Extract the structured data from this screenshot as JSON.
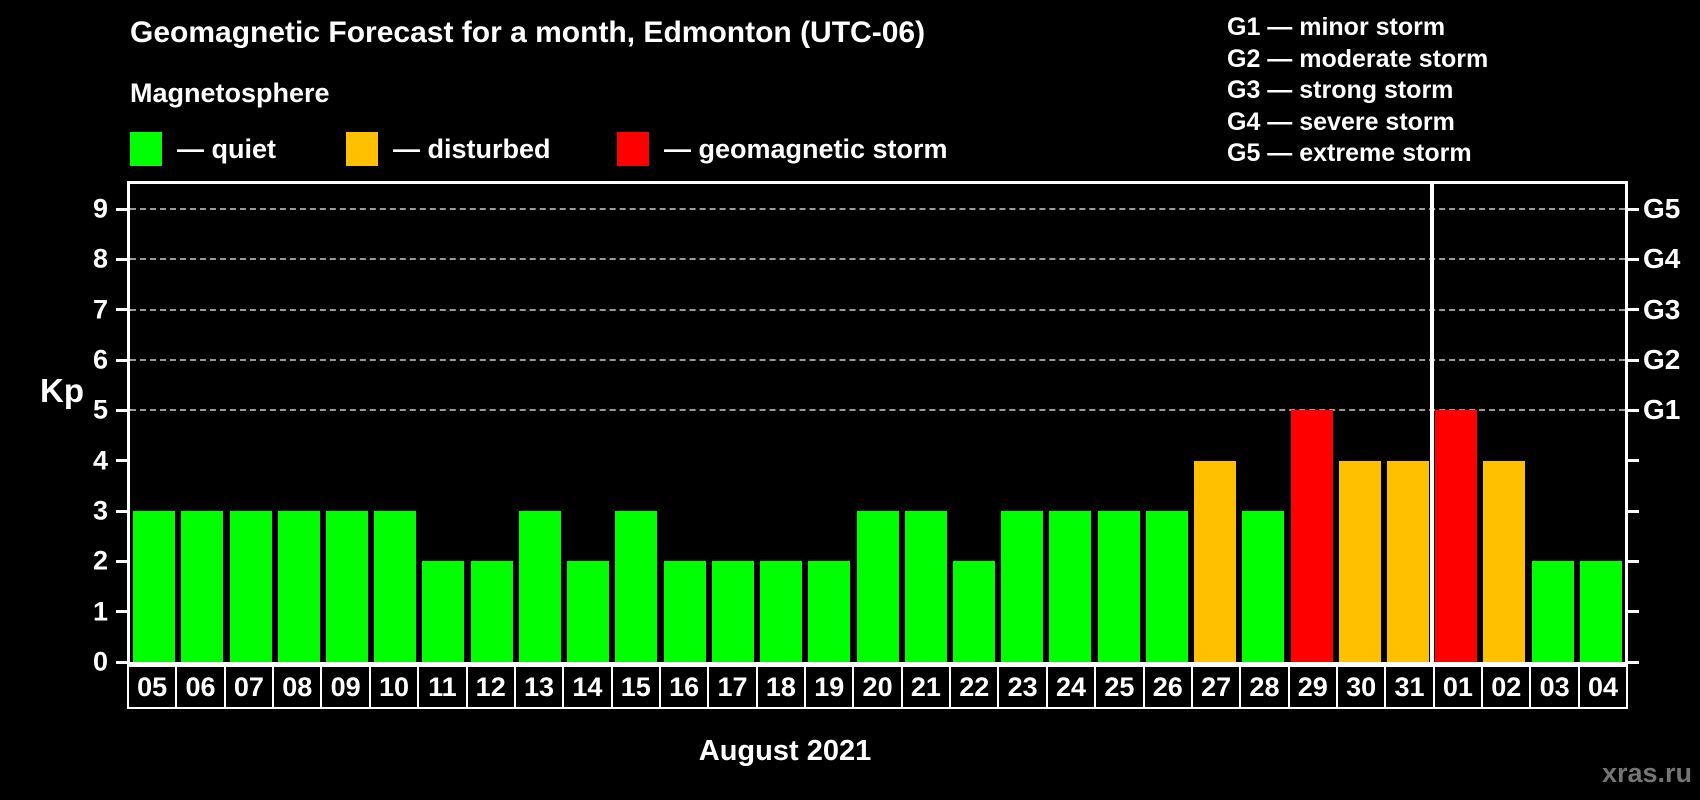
{
  "header": {
    "title": "Geomagnetic Forecast for a month, Edmonton (UTC-06)",
    "subtitle": "Magnetosphere"
  },
  "legend": {
    "items": [
      {
        "key": "quiet",
        "label": "— quiet",
        "color": "#00ff00"
      },
      {
        "key": "disturbed",
        "label": "— disturbed",
        "color": "#ffc000"
      },
      {
        "key": "storm",
        "label": "— geomagnetic storm",
        "color": "#ff0000"
      }
    ]
  },
  "storm_scale": {
    "lines": [
      "G1 — minor storm",
      "G2 — moderate storm",
      "G3 — strong storm",
      "G4 — severe storm",
      "G5 — extreme storm"
    ]
  },
  "watermark": "xras.ru",
  "chart_data": {
    "type": "bar",
    "title": "Geomagnetic Forecast for a month, Edmonton (UTC-06)",
    "xlabel": "August 2021",
    "ylabel": "Kp",
    "ylim": [
      0,
      9.5
    ],
    "grid": "horizontal dashed lines at Kp 5-9 (G1-G5)",
    "legend_position": "top",
    "categories": [
      "05",
      "06",
      "07",
      "08",
      "09",
      "10",
      "11",
      "12",
      "13",
      "14",
      "15",
      "16",
      "17",
      "18",
      "19",
      "20",
      "21",
      "22",
      "23",
      "24",
      "25",
      "26",
      "27",
      "28",
      "29",
      "30",
      "31",
      "01",
      "02",
      "03",
      "04"
    ],
    "values": [
      3,
      3,
      3,
      3,
      3,
      3,
      2,
      2,
      3,
      2,
      3,
      2,
      2,
      2,
      2,
      3,
      3,
      2,
      3,
      3,
      3,
      3,
      4,
      3,
      5,
      4,
      4,
      5,
      4,
      2,
      2
    ],
    "statuses": [
      "quiet",
      "quiet",
      "quiet",
      "quiet",
      "quiet",
      "quiet",
      "quiet",
      "quiet",
      "quiet",
      "quiet",
      "quiet",
      "quiet",
      "quiet",
      "quiet",
      "quiet",
      "quiet",
      "quiet",
      "quiet",
      "quiet",
      "quiet",
      "quiet",
      "quiet",
      "disturbed",
      "quiet",
      "storm",
      "disturbed",
      "disturbed",
      "storm",
      "disturbed",
      "quiet",
      "quiet"
    ],
    "status_colors": {
      "quiet": "#00ff00",
      "disturbed": "#ffc000",
      "storm": "#ff0000"
    },
    "y_ticks_left": [
      0,
      1,
      2,
      3,
      4,
      5,
      6,
      7,
      8,
      9
    ],
    "y_ticks_right": [
      {
        "kp": 5,
        "label": "G1"
      },
      {
        "kp": 6,
        "label": "G2"
      },
      {
        "kp": 7,
        "label": "G3"
      },
      {
        "kp": 8,
        "label": "G4"
      },
      {
        "kp": 9,
        "label": "G5"
      }
    ],
    "gridlines_kp": [
      5,
      6,
      7,
      8,
      9
    ],
    "month_separator_after_index": 26,
    "axis_color": "#ffffff",
    "gridline_color": "#9a9a9a"
  }
}
